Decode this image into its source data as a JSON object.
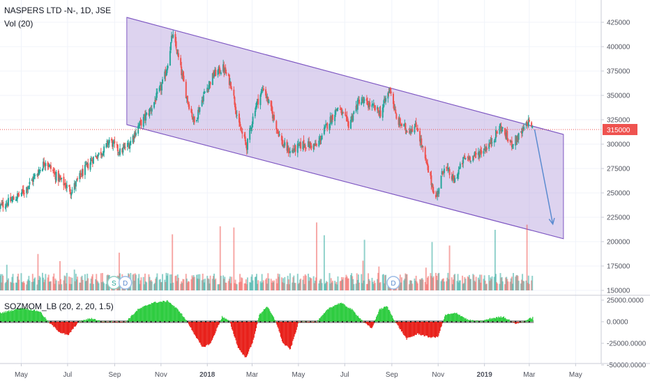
{
  "header": {
    "symbol_line": "NASPERS LTD -N-, 1D, JSE",
    "volume_label": "Vol (20)",
    "indicator_label": "SOZMOM_LB (20, 2, 20, 1.5)"
  },
  "colors": {
    "up": "#26a69a",
    "down": "#ef5350",
    "channel_fill": "#b39ddb",
    "channel_line": "#7e57c2",
    "price_line": "#ef5350",
    "price_tag_bg": "#ef5350",
    "arrow": "#5b8bd0",
    "mom_pos": "#2ecc40",
    "mom_neg": "#e8201a"
  },
  "markers": [
    {
      "letter": "S",
      "date": "2017-08-31"
    },
    {
      "letter": "D",
      "date": "2017-09-15"
    },
    {
      "letter": "D",
      "date": "2018-09-03"
    }
  ],
  "chart_data": {
    "type": "candlestick",
    "price_axis": {
      "ticks": [
        "425000",
        "400000",
        "375000",
        "350000",
        "325000",
        "300000",
        "275000",
        "250000",
        "225000",
        "200000",
        "175000",
        "150000"
      ],
      "ylim": [
        150000,
        430000
      ]
    },
    "last_price": "315000",
    "x_axis": {
      "ticks": [
        {
          "label": "May",
          "date": "2017-05-01"
        },
        {
          "label": "Jul",
          "date": "2017-07-01"
        },
        {
          "label": "Sep",
          "date": "2017-09-01"
        },
        {
          "label": "Nov",
          "date": "2017-11-01"
        },
        {
          "label": "2018",
          "date": "2018-01-01",
          "bold": true
        },
        {
          "label": "Mar",
          "date": "2018-03-01"
        },
        {
          "label": "May",
          "date": "2018-05-01"
        },
        {
          "label": "Jul",
          "date": "2018-07-01"
        },
        {
          "label": "Sep",
          "date": "2018-09-01"
        },
        {
          "label": "Nov",
          "date": "2018-11-01"
        },
        {
          "label": "2019",
          "date": "2019-01-01",
          "bold": true
        },
        {
          "label": "Mar",
          "date": "2019-03-01"
        },
        {
          "label": "May",
          "date": "2019-05-01"
        }
      ]
    },
    "close_series": [
      [
        "2017-04-03",
        236000
      ],
      [
        "2017-04-20",
        243000
      ],
      [
        "2017-05-05",
        252000
      ],
      [
        "2017-05-20",
        268000
      ],
      [
        "2017-06-02",
        283000
      ],
      [
        "2017-06-15",
        268000
      ],
      [
        "2017-06-28",
        258000
      ],
      [
        "2017-07-06",
        252000
      ],
      [
        "2017-07-20",
        270000
      ],
      [
        "2017-08-03",
        285000
      ],
      [
        "2017-08-18",
        294000
      ],
      [
        "2017-08-25",
        304000
      ],
      [
        "2017-09-08",
        292000
      ],
      [
        "2017-09-20",
        300000
      ],
      [
        "2017-10-02",
        318000
      ],
      [
        "2017-10-18",
        335000
      ],
      [
        "2017-11-01",
        358000
      ],
      [
        "2017-11-08",
        375000
      ],
      [
        "2017-11-16",
        412000
      ],
      [
        "2017-11-22",
        395000
      ],
      [
        "2017-12-05",
        348000
      ],
      [
        "2017-12-15",
        322000
      ],
      [
        "2017-12-28",
        352000
      ],
      [
        "2018-01-10",
        372000
      ],
      [
        "2018-01-22",
        378000
      ],
      [
        "2018-02-02",
        360000
      ],
      [
        "2018-02-12",
        318000
      ],
      [
        "2018-02-22",
        298000
      ],
      [
        "2018-03-05",
        338000
      ],
      [
        "2018-03-16",
        358000
      ],
      [
        "2018-03-28",
        330000
      ],
      [
        "2018-04-10",
        300000
      ],
      [
        "2018-04-20",
        292000
      ],
      [
        "2018-05-07",
        300000
      ],
      [
        "2018-05-25",
        298000
      ],
      [
        "2018-06-08",
        320000
      ],
      [
        "2018-06-22",
        338000
      ],
      [
        "2018-07-06",
        320000
      ],
      [
        "2018-07-20",
        345000
      ],
      [
        "2018-08-03",
        340000
      ],
      [
        "2018-08-17",
        332000
      ],
      [
        "2018-08-30",
        358000
      ],
      [
        "2018-09-07",
        325000
      ],
      [
        "2018-09-20",
        315000
      ],
      [
        "2018-10-04",
        318000
      ],
      [
        "2018-10-18",
        275000
      ],
      [
        "2018-10-29",
        244000
      ],
      [
        "2018-11-09",
        278000
      ],
      [
        "2018-11-22",
        262000
      ],
      [
        "2018-12-05",
        285000
      ],
      [
        "2018-12-20",
        288000
      ],
      [
        "2019-01-08",
        300000
      ],
      [
        "2019-01-22",
        318000
      ],
      [
        "2019-02-05",
        300000
      ],
      [
        "2019-02-18",
        310000
      ],
      [
        "2019-03-01",
        325000
      ],
      [
        "2019-03-05",
        315000
      ]
    ],
    "channel": {
      "upper": [
        [
          "2017-09-17",
          430000
        ],
        [
          "2019-04-15",
          310000
        ]
      ],
      "lower": [
        [
          "2017-09-17",
          320000
        ],
        [
          "2019-04-15",
          203000
        ]
      ]
    },
    "projection_arrow": [
      [
        "2019-03-08",
        315000
      ],
      [
        "2019-04-01",
        218000
      ]
    ],
    "volume": {
      "base": 150000,
      "typical_top": 168000,
      "spike_top": 222000
    },
    "momentum_axis": {
      "ticks": [
        "25000.0000",
        "0.0000",
        "-25000.0000",
        "-50000.0000"
      ],
      "ylim": [
        -52000,
        28000
      ]
    },
    "momentum_series": [
      [
        "2017-04-03",
        10000
      ],
      [
        "2017-05-01",
        16000
      ],
      [
        "2017-05-25",
        12000
      ],
      [
        "2017-06-05",
        0
      ],
      [
        "2017-06-20",
        -12000
      ],
      [
        "2017-07-01",
        -16000
      ],
      [
        "2017-07-15",
        0
      ],
      [
        "2017-08-01",
        4000
      ],
      [
        "2017-08-15",
        0
      ],
      [
        "2017-09-01",
        0
      ],
      [
        "2017-09-15",
        0
      ],
      [
        "2017-10-01",
        14000
      ],
      [
        "2017-10-20",
        22000
      ],
      [
        "2017-11-10",
        24000
      ],
      [
        "2017-11-25",
        12000
      ],
      [
        "2017-12-05",
        0
      ],
      [
        "2017-12-25",
        -30000
      ],
      [
        "2018-01-05",
        -25000
      ],
      [
        "2018-01-20",
        6000
      ],
      [
        "2018-01-30",
        0
      ],
      [
        "2018-02-10",
        -30000
      ],
      [
        "2018-02-20",
        -42000
      ],
      [
        "2018-03-01",
        -25000
      ],
      [
        "2018-03-10",
        8000
      ],
      [
        "2018-03-20",
        18000
      ],
      [
        "2018-04-01",
        0
      ],
      [
        "2018-04-10",
        -25000
      ],
      [
        "2018-04-20",
        -32000
      ],
      [
        "2018-05-01",
        0
      ],
      [
        "2018-05-25",
        0
      ],
      [
        "2018-06-10",
        16000
      ],
      [
        "2018-06-25",
        22000
      ],
      [
        "2018-07-10",
        14000
      ],
      [
        "2018-07-25",
        0
      ],
      [
        "2018-08-05",
        -8000
      ],
      [
        "2018-08-15",
        14000
      ],
      [
        "2018-08-25",
        18000
      ],
      [
        "2018-09-05",
        0
      ],
      [
        "2018-09-20",
        -20000
      ],
      [
        "2018-10-05",
        -14000
      ],
      [
        "2018-10-20",
        -18000
      ],
      [
        "2018-10-31",
        -18000
      ],
      [
        "2018-11-10",
        8000
      ],
      [
        "2018-11-25",
        10000
      ],
      [
        "2018-12-10",
        2000
      ],
      [
        "2018-12-25",
        0
      ],
      [
        "2019-01-10",
        4000
      ],
      [
        "2019-01-25",
        6000
      ],
      [
        "2019-02-10",
        -2000
      ],
      [
        "2019-02-20",
        0
      ],
      [
        "2019-03-05",
        5000
      ]
    ]
  }
}
